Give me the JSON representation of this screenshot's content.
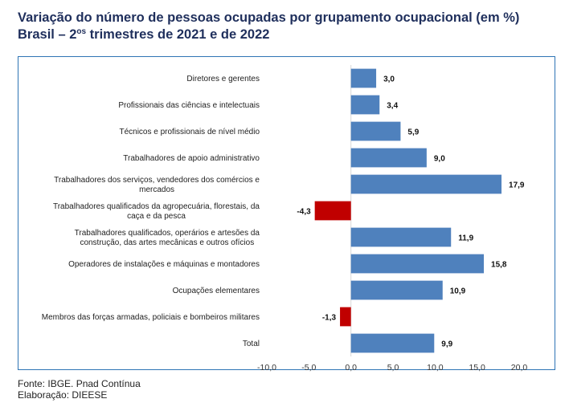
{
  "header": {
    "title_line1": "Variação do número de pessoas ocupadas por grupamento ocupacional (em %)",
    "title_line2_prefix": "Brasil – 2",
    "title_line2_sup": "os",
    "title_line2_suffix": " trimestres de 2021 e de 2022"
  },
  "footer": {
    "source": "Fonte: IBGE. Pnad Contínua",
    "author": "Elaboração: DIEESE"
  },
  "colors": {
    "positive": "#4f81bd",
    "negative": "#c00000",
    "frame": "#2e74b5",
    "title": "#1f2f5c"
  },
  "chart_data": {
    "type": "bar",
    "orientation": "horizontal",
    "title": "Variação do número de pessoas ocupadas por grupamento ocupacional (em %) — Brasil – 2os trimestres de 2021 e de 2022",
    "xlabel": "",
    "ylabel": "",
    "xlim": [
      -10,
      20
    ],
    "xticks": [
      -10,
      -5,
      0,
      5,
      10,
      15,
      20
    ],
    "xtick_labels": [
      "-10,0",
      "-5,0",
      "0,0",
      "5,0",
      "10,0",
      "15,0",
      "20,0"
    ],
    "grid": false,
    "categories": [
      [
        "Diretores e gerentes"
      ],
      [
        "Profissionais das ciências e intelectuais"
      ],
      [
        "Técnicos e profissionais de nível médio"
      ],
      [
        "Trabalhadores de apoio administrativo"
      ],
      [
        "Trabalhadores dos serviços, vendedores dos comércios e",
        "mercados"
      ],
      [
        "Trabalhadores qualificados da agropecuária, florestais, da",
        "caça e da pesca"
      ],
      [
        "Trabalhadores qualificados, operários e artesões da",
        "construção, das artes mecânicas e outros ofícios"
      ],
      [
        "Operadores de instalações e máquinas e montadores"
      ],
      [
        "Ocupações elementares"
      ],
      [
        "Membros das forças armadas, policiais e bombeiros militares"
      ],
      [
        "Total"
      ]
    ],
    "values": [
      3.0,
      3.4,
      5.9,
      9.0,
      17.9,
      -4.3,
      11.9,
      15.8,
      10.9,
      -1.3,
      9.9
    ],
    "value_labels": [
      "3,0",
      "3,4",
      "5,9",
      "9,0",
      "17,9",
      "-4,3",
      "11,9",
      "15,8",
      "10,9",
      "-1,3",
      "9,9"
    ]
  }
}
